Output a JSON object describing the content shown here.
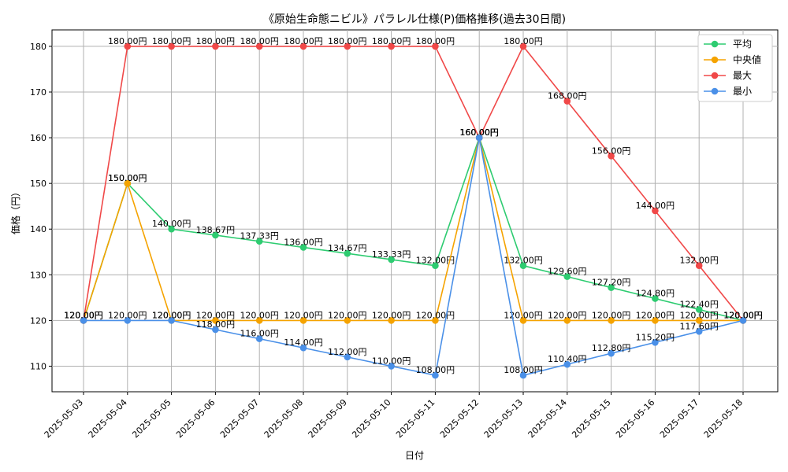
{
  "chart_data": {
    "type": "line",
    "title": "《原始生命態ニビル》パラレル仕様(P)価格推移(過去30日間)",
    "xlabel": "日付",
    "ylabel": "価格（円）",
    "ylim": [
      104.4,
      183.6
    ],
    "yticks": [
      110,
      120,
      130,
      140,
      150,
      160,
      170,
      180
    ],
    "grid": true,
    "legend_position": "top-right",
    "label_suffix": "円",
    "categories": [
      "2025-05-03",
      "2025-05-04",
      "2025-05-05",
      "2025-05-06",
      "2025-05-07",
      "2025-05-08",
      "2025-05-09",
      "2025-05-10",
      "2025-05-11",
      "2025-05-12",
      "2025-05-13",
      "2025-05-14",
      "2025-05-15",
      "2025-05-16",
      "2025-05-17",
      "2025-05-18"
    ],
    "series": [
      {
        "name": "平均",
        "color": "#2ecc71",
        "values": [
          120,
          150,
          140,
          138.67,
          137.33,
          136,
          134.67,
          133.33,
          132,
          160,
          132,
          129.6,
          127.2,
          124.8,
          122.4,
          120
        ]
      },
      {
        "name": "中央値",
        "color": "#f5a300",
        "values": [
          120,
          150,
          120,
          120,
          120,
          120,
          120,
          120,
          120,
          160,
          120,
          120,
          120,
          120,
          120,
          120
        ]
      },
      {
        "name": "最大",
        "color": "#f04848",
        "values": [
          120,
          180,
          180,
          180,
          180,
          180,
          180,
          180,
          180,
          160,
          180,
          168,
          156,
          144,
          132,
          120
        ]
      },
      {
        "name": "最小",
        "color": "#4a90e8",
        "values": [
          120,
          120,
          120,
          118,
          116,
          114,
          112,
          110,
          108,
          160,
          108,
          110.4,
          112.8,
          115.2,
          117.6,
          120
        ]
      }
    ]
  }
}
